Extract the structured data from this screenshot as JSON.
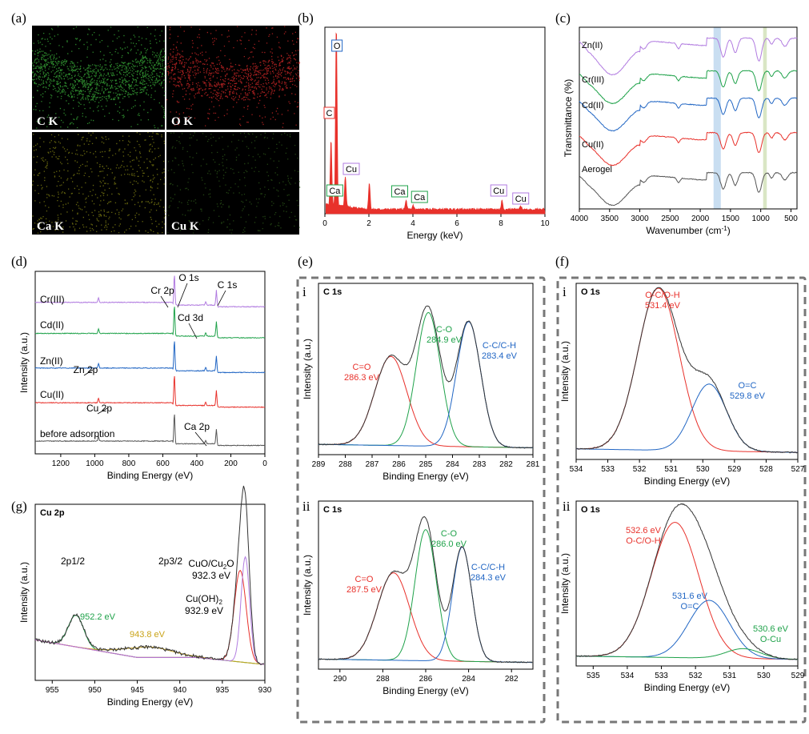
{
  "colors": {
    "black": "#000000",
    "red": "#e8312b",
    "green": "#1fa24a",
    "blue": "#2166c4",
    "purple": "#b17be0",
    "olive": "#c9a317",
    "gray": "#555555",
    "c_map": "#3bb33b",
    "o_map": "#d62828",
    "ca_map": "#8a8a14",
    "cu_map": "#2e5a1a",
    "band_blue": "#bcd6ee",
    "band_green": "#cfe0b5"
  },
  "panels": {
    "a": {
      "label": "(a)"
    },
    "b": {
      "label": "(b)"
    },
    "c": {
      "label": "(c)"
    },
    "d": {
      "label": "(d)"
    },
    "e": {
      "label": "(e)"
    },
    "f": {
      "label": "(f)"
    },
    "g": {
      "label": "(g)"
    }
  },
  "eds_maps": [
    {
      "label": "C K",
      "color": "#3bb33b"
    },
    {
      "label": "O K",
      "color": "#d62828"
    },
    {
      "label": "Ca K",
      "color": "#8a8a14"
    },
    {
      "label": "Cu K",
      "color": "#2e5a1a"
    }
  ],
  "chart_data": [
    {
      "id": "b",
      "type": "bar",
      "xlabel": "Energy (keV)",
      "xlim": [
        0,
        10
      ],
      "xticks": [
        0,
        2,
        4,
        6,
        8,
        10
      ],
      "peaks": [
        {
          "x": 0.28,
          "y": 0.36
        },
        {
          "x": 0.52,
          "y": 1.0
        },
        {
          "x": 0.93,
          "y": 0.17
        },
        {
          "x": 2.02,
          "y": 0.15
        },
        {
          "x": 3.69,
          "y": 0.05
        },
        {
          "x": 4.01,
          "y": 0.025
        },
        {
          "x": 8.05,
          "y": 0.05
        },
        {
          "x": 8.9,
          "y": 0.02
        }
      ],
      "annotations": [
        {
          "text": "O",
          "x": 0.55,
          "box": "#2166c4"
        },
        {
          "text": "C",
          "x": 0.2,
          "box": "#e8312b"
        },
        {
          "text": "Ca",
          "x": 0.45,
          "box": "#1fa24a"
        },
        {
          "text": "Cu",
          "x": 1.2,
          "box": "#b17be0"
        },
        {
          "text": "Ca",
          "x": 3.4,
          "box": "#1fa24a"
        },
        {
          "text": "Ca",
          "x": 4.3,
          "box": "#1fa24a"
        },
        {
          "text": "Cu",
          "x": 7.9,
          "box": "#b17be0"
        },
        {
          "text": "Cu",
          "x": 8.9,
          "box": "#b17be0"
        }
      ]
    },
    {
      "id": "c",
      "type": "line",
      "xlabel": "Wavenumber (cm",
      "xlabel_sup": "-1",
      "xlabel_end": ")",
      "ylabel": "Transmittance (%)",
      "xlim": [
        4000,
        400
      ],
      "xticks": [
        4000,
        3500,
        3000,
        2500,
        2000,
        1500,
        1000,
        500
      ],
      "bands": [
        [
          1780,
          1660
        ],
        [
          960,
          900
        ]
      ],
      "series": [
        {
          "name": "Aerogel",
          "color": "#555555",
          "offset": 0.06
        },
        {
          "name": "Cu(II)",
          "color": "#e8312b",
          "offset": 0.28
        },
        {
          "name": "Cd(II)",
          "color": "#2166c4",
          "offset": 0.47
        },
        {
          "name": "Cr(III)",
          "color": "#1fa24a",
          "offset": 0.62
        },
        {
          "name": "Zn(II)",
          "color": "#b17be0",
          "offset": 0.8
        }
      ],
      "features": [
        {
          "x": 3450,
          "depth": 0.14,
          "width": 230
        },
        {
          "x": 2930,
          "depth": 0.03,
          "width": 45
        },
        {
          "x": 2360,
          "depth": 0.025,
          "width": 25
        },
        {
          "x": 1620,
          "depth": 0.09,
          "width": 45
        },
        {
          "x": 1420,
          "depth": 0.07,
          "width": 40
        },
        {
          "x": 1030,
          "depth": 0.11,
          "width": 45
        },
        {
          "x": 820,
          "depth": 0.03,
          "width": 30
        },
        {
          "x": 600,
          "depth": 0.04,
          "width": 45
        }
      ]
    },
    {
      "id": "d",
      "type": "line",
      "xlabel": "Binding Energy (eV)",
      "ylabel": "Intensity (a.u.)",
      "xlim": [
        1350,
        0
      ],
      "xticks": [
        1200,
        1000,
        800,
        600,
        400,
        200,
        0
      ],
      "series": [
        {
          "name": "before adsorption",
          "color": "#555555",
          "offset": 0.04
        },
        {
          "name": "Cu(II)",
          "color": "#e8312b",
          "offset": 0.25
        },
        {
          "name": "Zn(II)",
          "color": "#2166c4",
          "offset": 0.44
        },
        {
          "name": "Cd(II)",
          "color": "#1fa24a",
          "offset": 0.63
        },
        {
          "name": "Cr(III)",
          "color": "#b17be0",
          "offset": 0.8
        }
      ],
      "peaks": [
        {
          "x": 532,
          "h": 0.17
        },
        {
          "x": 285,
          "h": 0.09
        },
        {
          "x": 348,
          "h": 0.02
        },
        {
          "x": 978,
          "h": 0.025
        }
      ],
      "annotations": [
        {
          "text": "O 1s",
          "x": 530
        },
        {
          "text": "C 1s",
          "x": 285
        },
        {
          "text": "Cr 2p",
          "x": 577
        },
        {
          "text": "Cd 3d",
          "x": 405
        },
        {
          "text": "Zn 2p",
          "x": 1022
        },
        {
          "text": "Cu 2p",
          "x": 934
        },
        {
          "text": "Ca 2p",
          "x": 347
        }
      ]
    },
    {
      "id": "e-i",
      "type": "line",
      "title": "C 1s",
      "sub": "i",
      "xlabel": "Binding Energy (eV)",
      "ylabel": "Intensity (a.u.)",
      "xlim": [
        289,
        281
      ],
      "xticks": [
        289,
        288,
        287,
        286,
        285,
        284,
        283,
        282,
        281
      ],
      "components": [
        {
          "center": 286.3,
          "height": 0.52,
          "sigma": 0.6,
          "color": "#e8312b",
          "label": "C=O",
          "value": "286.3 eV"
        },
        {
          "center": 284.9,
          "height": 0.78,
          "sigma": 0.45,
          "color": "#1fa24a",
          "label": "C-O",
          "value": "284.9 eV"
        },
        {
          "center": 283.4,
          "height": 0.73,
          "sigma": 0.45,
          "color": "#2166c4",
          "label": "C-C/C-H",
          "value": "283.4 eV"
        }
      ]
    },
    {
      "id": "e-ii",
      "type": "line",
      "title": "C 1s",
      "sub": "ii",
      "xlabel": "Binding Energy (eV)",
      "ylabel": "Intensity (a.u.)",
      "xlim": [
        291,
        281
      ],
      "xticks": [
        290,
        288,
        286,
        284,
        282
      ],
      "components": [
        {
          "center": 287.5,
          "height": 0.52,
          "sigma": 0.75,
          "color": "#e8312b",
          "label": "C=O",
          "value": "287.5 eV"
        },
        {
          "center": 286.0,
          "height": 0.78,
          "sigma": 0.5,
          "color": "#1fa24a",
          "label": "C-O",
          "value": "286.0 eV"
        },
        {
          "center": 284.3,
          "height": 0.68,
          "sigma": 0.45,
          "color": "#2166c4",
          "label": "C-C/C-H",
          "value": "284.3 eV"
        }
      ]
    },
    {
      "id": "f-i",
      "type": "line",
      "title": "O 1s",
      "sub": "i",
      "xlabel": "Binding Energy (eV)",
      "ylabel": "Intensity (a.u.)",
      "xlim": [
        534,
        527
      ],
      "xticks": [
        534,
        533,
        532,
        531,
        530,
        529,
        528,
        527
      ],
      "components": [
        {
          "center": 531.4,
          "height": 0.92,
          "sigma": 0.65,
          "color": "#e8312b",
          "label": "O-C/O-H",
          "value": "531.4 eV"
        },
        {
          "center": 529.8,
          "height": 0.38,
          "sigma": 0.55,
          "color": "#2166c4",
          "label": "O=C",
          "value": "529.8 eV"
        }
      ]
    },
    {
      "id": "f-ii",
      "type": "line",
      "title": "O 1s",
      "sub": "ii",
      "xlabel": "Binding Energy (eV)",
      "ylabel": "Intensity (a.u.)",
      "xlim": [
        535.5,
        529
      ],
      "xticks": [
        535,
        534,
        533,
        532,
        531,
        530,
        529
      ],
      "components": [
        {
          "center": 532.6,
          "height": 0.82,
          "sigma": 0.7,
          "color": "#e8312b",
          "label": "O-C/O-H",
          "value": "532.6 eV"
        },
        {
          "center": 531.6,
          "height": 0.35,
          "sigma": 0.6,
          "color": "#2166c4",
          "label": "O=C",
          "value": "531.6 eV"
        },
        {
          "center": 530.6,
          "height": 0.06,
          "sigma": 0.5,
          "color": "#1fa24a",
          "label": "O-Cu",
          "value": "530.6 eV"
        }
      ]
    },
    {
      "id": "g",
      "type": "line",
      "title": "Cu 2p",
      "xlabel": "Binding Energy (eV)",
      "ylabel": "Intensity (a.u.)",
      "xlim": [
        957,
        930
      ],
      "xticks": [
        955,
        950,
        945,
        940,
        935,
        930
      ],
      "labels": [
        "2p1/2",
        "2p3/2"
      ],
      "components": [
        {
          "center": 952.2,
          "height": 0.18,
          "sigma": 0.9,
          "color": "#1fa24a",
          "value": "952.2 eV"
        },
        {
          "center": 943.8,
          "height": 0.06,
          "sigma": 2.8,
          "color": "#c9a317",
          "value": "943.8 eV"
        },
        {
          "center": 932.9,
          "height": 0.52,
          "sigma": 0.7,
          "color": "#e8312b",
          "label": "Cu(OH)",
          "label_sub": "2",
          "value": "932.9 eV"
        },
        {
          "center": 932.3,
          "height": 0.6,
          "sigma": 0.5,
          "color": "#b17be0",
          "label": "CuO/Cu",
          "label_sub": "2",
          "label_end": "O",
          "value": "932.3 eV"
        }
      ]
    }
  ]
}
